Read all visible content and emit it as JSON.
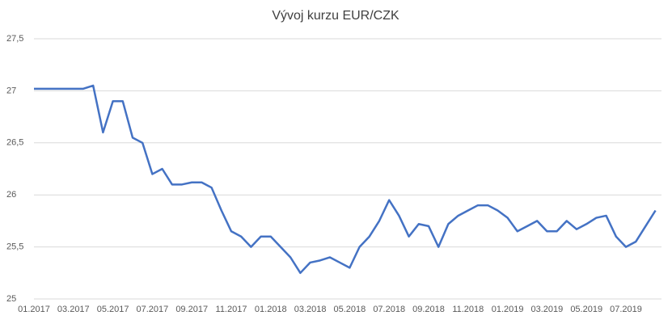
{
  "chart_data": {
    "type": "line",
    "title": "Vývoj kurzu EUR/CZK",
    "categories": [
      "01.2017",
      null,
      null,
      null,
      "03.2017",
      null,
      null,
      null,
      "05.2017",
      null,
      null,
      null,
      "07.2017",
      null,
      null,
      null,
      "09.2017",
      null,
      null,
      null,
      "11.2017",
      null,
      null,
      null,
      "01.2018",
      null,
      null,
      null,
      "03.2018",
      null,
      null,
      null,
      "05.2018",
      null,
      null,
      null,
      "07.2018",
      null,
      null,
      null,
      "09.2018",
      null,
      null,
      null,
      "11.2018",
      null,
      null,
      null,
      "01.2019",
      null,
      null,
      null,
      "03.2019",
      null,
      null,
      null,
      "05.2019",
      null,
      null,
      null,
      "07.2019",
      null,
      null,
      null
    ],
    "series": [
      {
        "name": "EUR/CZK",
        "color": "#4472c4",
        "values": [
          27.02,
          27.02,
          27.02,
          27.02,
          27.02,
          27.02,
          27.05,
          26.6,
          26.9,
          26.9,
          26.55,
          26.5,
          26.2,
          26.25,
          26.1,
          26.1,
          26.12,
          26.12,
          26.07,
          25.85,
          25.65,
          25.6,
          25.5,
          25.6,
          25.6,
          25.5,
          25.4,
          25.25,
          25.35,
          25.37,
          25.4,
          25.35,
          25.3,
          25.5,
          25.6,
          25.75,
          25.95,
          25.8,
          25.6,
          25.72,
          25.7,
          25.5,
          25.72,
          25.8,
          25.85,
          25.9,
          25.9,
          25.85,
          25.78,
          25.65,
          25.7,
          25.75,
          25.65,
          25.65,
          25.75,
          25.67,
          25.72,
          25.78,
          25.8,
          25.6,
          25.5,
          25.55,
          25.7,
          25.85
        ]
      }
    ],
    "ylim": [
      25,
      27.5
    ],
    "yticks": [
      25,
      {
        "value": 25.5,
        "label": "25,5"
      },
      26,
      {
        "value": 26.5,
        "label": "26,5"
      },
      27,
      {
        "value": 27.5,
        "label": "27,5"
      }
    ],
    "grid": true
  }
}
